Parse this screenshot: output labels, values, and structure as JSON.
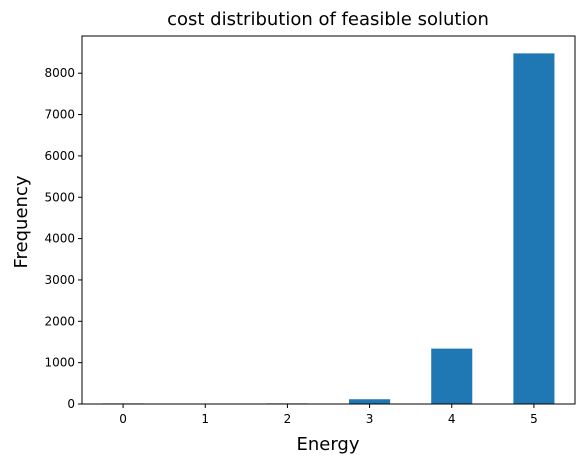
{
  "chart_data": {
    "type": "bar",
    "title": "cost distribution of feasible solution",
    "xlabel": "Energy",
    "ylabel": "Frequency",
    "categories": [
      0,
      1,
      2,
      3,
      4,
      5
    ],
    "values": [
      15,
      5,
      15,
      115,
      1340,
      8480
    ],
    "ylim": [
      0,
      8900
    ],
    "yticks": [
      0,
      1000,
      2000,
      3000,
      4000,
      5000,
      6000,
      7000,
      8000
    ],
    "bar_color": "#1f77b4",
    "grid": false,
    "legend": "none"
  }
}
